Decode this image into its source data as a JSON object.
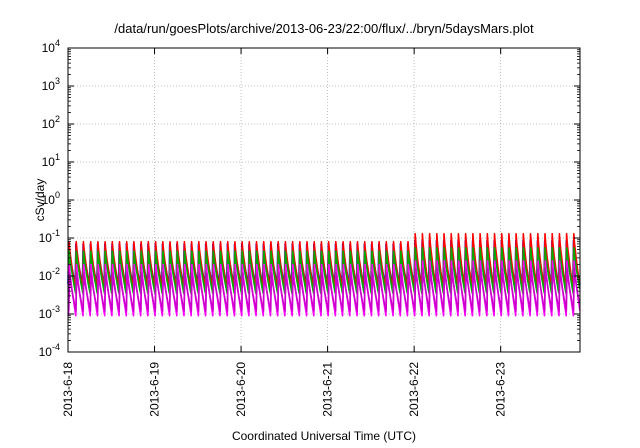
{
  "chart_data": {
    "type": "line",
    "title": "/data/run/goesPlots/archive/2013-06-23/22:00/flux/../bryn/5daysMars.plot",
    "xlabel": "Coordinated Universal Time (UTC)",
    "ylabel": "cSv/day",
    "y_scale": "log",
    "ylim": [
      0.0001,
      10000
    ],
    "xlim": [
      "2013-06-18 00:00",
      "2013-06-23 22:00"
    ],
    "y_ticks": [
      {
        "base": "10",
        "exp": "-4"
      },
      {
        "base": "10",
        "exp": "-3"
      },
      {
        "base": "10",
        "exp": "-2"
      },
      {
        "base": "10",
        "exp": "-1"
      },
      {
        "base": "10",
        "exp": "0"
      },
      {
        "base": "10",
        "exp": "1"
      },
      {
        "base": "10",
        "exp": "2"
      },
      {
        "base": "10",
        "exp": "3"
      },
      {
        "base": "10",
        "exp": "4"
      }
    ],
    "x_ticks": [
      "2013-6-18",
      "2013-6-19",
      "2013-6-20",
      "2013-6-21",
      "2013-6-22",
      "2013-6-23"
    ],
    "grid": true,
    "legend": "none",
    "cycles_per_day": 12,
    "series": [
      {
        "color": "#0000ff",
        "low": 0.006,
        "high": 0.07,
        "late_high": 0.085
      },
      {
        "color": "#00b4b4",
        "low": 0.004,
        "high": 0.055,
        "late_high": 0.065
      },
      {
        "color": "#ff0000",
        "low": 0.0045,
        "high": 0.08,
        "late_high": 0.13
      },
      {
        "color": "#00aa00",
        "low": 0.0035,
        "high": 0.045,
        "late_high": 0.055
      },
      {
        "color": "#ff00ff",
        "low": 0.0009,
        "high": 0.02,
        "late_high": 0.025
      },
      {
        "color": "#cc00cc",
        "low": 0.0012,
        "high": 0.012,
        "late_high": 0.016
      }
    ]
  }
}
